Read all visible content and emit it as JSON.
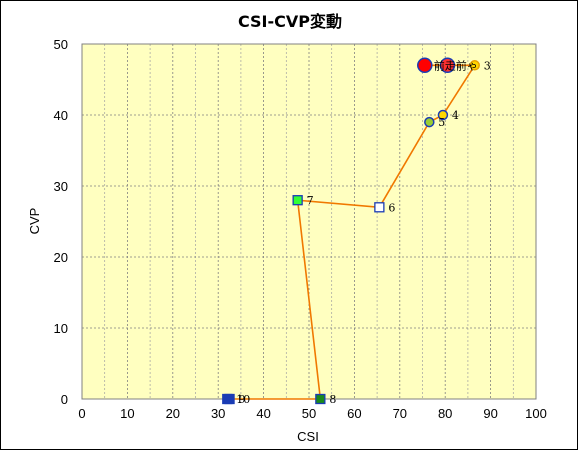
{
  "chart_data": {
    "type": "scatter",
    "title": "CSI-CVP変動",
    "xlabel": "CSI",
    "ylabel": "CVP",
    "xlim": [
      0,
      100
    ],
    "ylim": [
      0,
      50
    ],
    "x_ticks": [
      "0",
      "10",
      "20",
      "30",
      "40",
      "50",
      "60",
      "70",
      "80",
      "90",
      "100"
    ],
    "y_ticks": [
      "0",
      "10",
      "20",
      "30",
      "40",
      "50"
    ],
    "grid": true,
    "minor_vertical_grid": true,
    "plot_background": "#FFFFC0",
    "line_color": "#F07800",
    "points": [
      {
        "label": "3",
        "x": 86.5,
        "y": 47,
        "marker": "circle",
        "fill": "#FFD700",
        "stroke": "#E8A000"
      },
      {
        "label": "4",
        "x": 79.5,
        "y": 40,
        "marker": "circle",
        "fill": "#FFD700",
        "stroke": "#1A3CB4"
      },
      {
        "label": "5",
        "x": 76.5,
        "y": 39,
        "marker": "circle",
        "fill": "#9ACD32",
        "stroke": "#1A3CB4"
      },
      {
        "label": "6",
        "x": 65.5,
        "y": 27,
        "marker": "square",
        "fill": "#FFFFFF",
        "stroke": "#1A3CB4"
      },
      {
        "label": "7",
        "x": 47.5,
        "y": 28,
        "marker": "square",
        "fill": "#33FF33",
        "stroke": "#1A3CB4"
      },
      {
        "label": "8",
        "x": 52.5,
        "y": 0,
        "marker": "square",
        "fill": "#1A8A1A",
        "stroke": "#1A3CB4"
      },
      {
        "label": "9",
        "x": 32.5,
        "y": 0,
        "marker": "square",
        "fill": "#1A3CB4",
        "stroke": "#1A3CB4"
      },
      {
        "label": "10",
        "x": 32.0,
        "y": 0,
        "marker": "square",
        "fill": "#1A3CB4",
        "stroke": "#1A3CB4"
      }
    ],
    "top_points": [
      {
        "x": 75.5,
        "y": 47,
        "marker": "circle",
        "fill": "#FF0000",
        "stroke": "#1A3CB4"
      },
      {
        "x": 80.5,
        "y": 47,
        "marker": "circle",
        "fill": "#FF3030",
        "stroke": "#1A3CB4"
      }
    ],
    "top_label": "前走前ゃ"
  }
}
